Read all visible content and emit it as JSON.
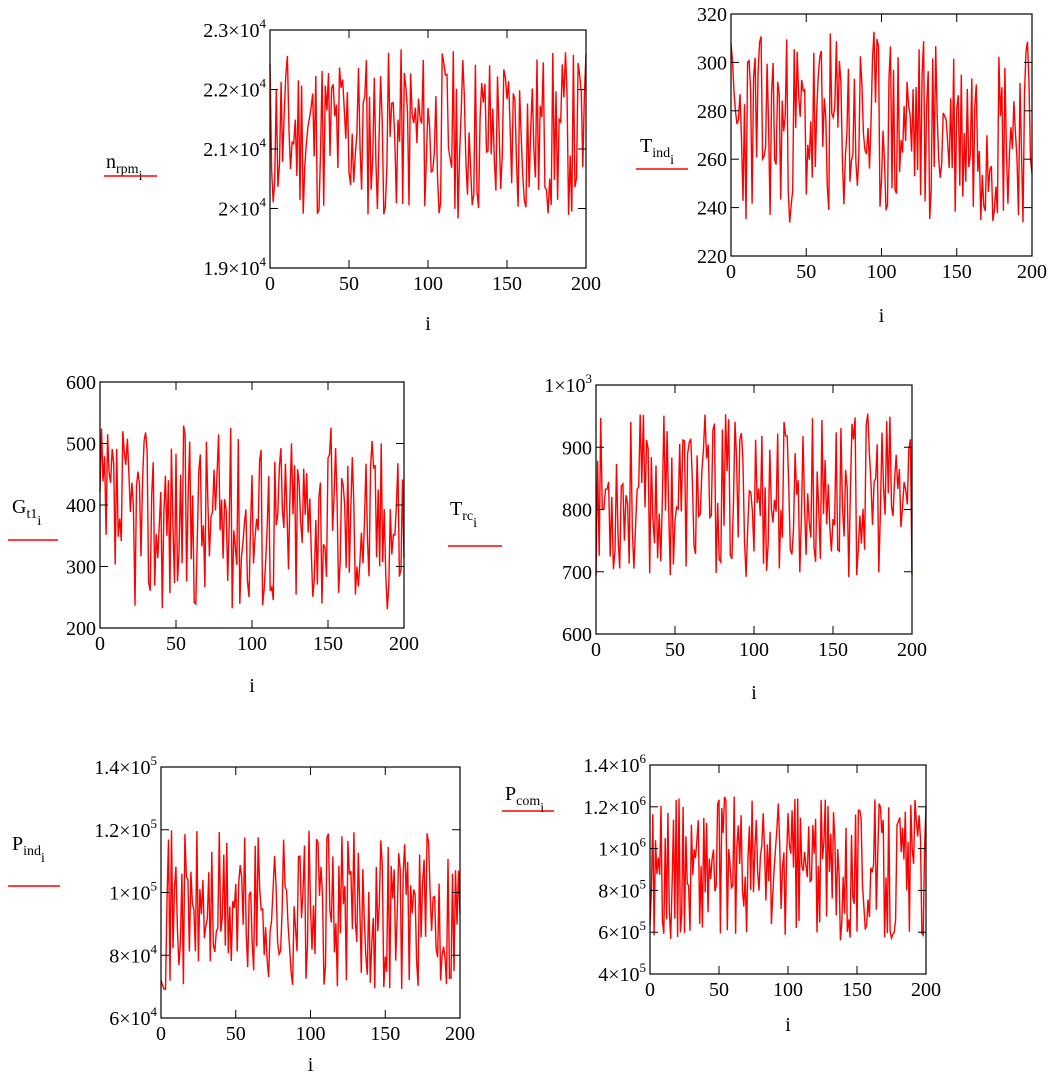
{
  "chart_data": [
    {
      "type": "line",
      "ylabel_main": "n",
      "ylabel_sub": "rpm",
      "ylabel_index": "i",
      "xlabel": "i",
      "color": "#ff0000",
      "xlim": [
        0,
        200
      ],
      "ylim": [
        19000,
        23000
      ],
      "xticks": [
        "0",
        "50",
        "100",
        "150",
        "200"
      ],
      "yticks": [
        {
          "mant": "1.9×10",
          "exp": "4"
        },
        {
          "mant": "2×10",
          "exp": "4"
        },
        {
          "mant": "2.1×10",
          "exp": "4"
        },
        {
          "mant": "2.2×10",
          "exp": "4"
        },
        {
          "mant": "2.3×10",
          "exp": "4"
        }
      ],
      "ytick_values": [
        19000,
        20000,
        21000,
        22000,
        23000
      ],
      "noise": {
        "min": 19800,
        "max": 22700,
        "seed": 11
      }
    },
    {
      "type": "line",
      "ylabel_main": "T",
      "ylabel_sub": "ind",
      "ylabel_index": "i",
      "xlabel": "i",
      "color": "#ff0000",
      "xlim": [
        0,
        200
      ],
      "ylim": [
        220,
        320
      ],
      "xticks": [
        "0",
        "50",
        "100",
        "150",
        "200"
      ],
      "yticks": [
        {
          "mant": "220",
          "exp": ""
        },
        {
          "mant": "240",
          "exp": ""
        },
        {
          "mant": "260",
          "exp": ""
        },
        {
          "mant": "280",
          "exp": ""
        },
        {
          "mant": "300",
          "exp": ""
        },
        {
          "mant": "320",
          "exp": ""
        }
      ],
      "ytick_values": [
        220,
        240,
        260,
        280,
        300,
        320
      ],
      "noise": {
        "min": 233,
        "max": 313,
        "seed": 23
      }
    },
    {
      "type": "line",
      "ylabel_main": "G",
      "ylabel_sub": "t1",
      "ylabel_index": "i",
      "xlabel": "i",
      "color": "#ff0000",
      "xlim": [
        0,
        200
      ],
      "ylim": [
        200,
        600
      ],
      "xticks": [
        "0",
        "50",
        "100",
        "150",
        "200"
      ],
      "yticks": [
        {
          "mant": "200",
          "exp": ""
        },
        {
          "mant": "300",
          "exp": ""
        },
        {
          "mant": "400",
          "exp": ""
        },
        {
          "mant": "500",
          "exp": ""
        },
        {
          "mant": "600",
          "exp": ""
        }
      ],
      "ytick_values": [
        200,
        300,
        400,
        500,
        600
      ],
      "noise": {
        "min": 230,
        "max": 530,
        "seed": 37
      }
    },
    {
      "type": "line",
      "ylabel_main": "T",
      "ylabel_sub": "rc",
      "ylabel_index": "i",
      "xlabel": "i",
      "color": "#ff0000",
      "xlim": [
        0,
        200
      ],
      "ylim": [
        600,
        1000
      ],
      "xticks": [
        "0",
        "50",
        "100",
        "150",
        "200"
      ],
      "yticks": [
        {
          "mant": "600",
          "exp": ""
        },
        {
          "mant": "700",
          "exp": ""
        },
        {
          "mant": "800",
          "exp": ""
        },
        {
          "mant": "900",
          "exp": ""
        },
        {
          "mant": "1×10",
          "exp": "3"
        }
      ],
      "ytick_values": [
        600,
        700,
        800,
        900,
        1000
      ],
      "noise": {
        "min": 690,
        "max": 955,
        "seed": 53
      }
    },
    {
      "type": "line",
      "ylabel_main": "P",
      "ylabel_sub": "ind",
      "ylabel_index": "i",
      "xlabel": "i",
      "color": "#ff0000",
      "xlim": [
        0,
        200
      ],
      "ylim": [
        60000,
        140000
      ],
      "xticks": [
        "0",
        "50",
        "100",
        "150",
        "200"
      ],
      "yticks": [
        {
          "mant": "6×10",
          "exp": "4"
        },
        {
          "mant": "8×10",
          "exp": "4"
        },
        {
          "mant": "1×10",
          "exp": "5"
        },
        {
          "mant": "1.2×10",
          "exp": "5"
        },
        {
          "mant": "1.4×10",
          "exp": "5"
        }
      ],
      "ytick_values": [
        60000,
        80000,
        100000,
        120000,
        140000
      ],
      "noise": {
        "min": 69000,
        "max": 120000,
        "seed": 71
      }
    },
    {
      "type": "line",
      "ylabel_main": "P",
      "ylabel_sub": "com",
      "ylabel_index": "i",
      "xlabel": "i",
      "color": "#ff0000",
      "xlim": [
        0,
        200
      ],
      "ylim": [
        400000,
        1400000
      ],
      "xticks": [
        "0",
        "50",
        "100",
        "150",
        "200"
      ],
      "yticks": [
        {
          "mant": "4×10",
          "exp": "5"
        },
        {
          "mant": "6×10",
          "exp": "5"
        },
        {
          "mant": "8×10",
          "exp": "5"
        },
        {
          "mant": "1×10",
          "exp": "6"
        },
        {
          "mant": "1.2×10",
          "exp": "6"
        },
        {
          "mant": "1.4×10",
          "exp": "6"
        }
      ],
      "ytick_values": [
        400000,
        600000,
        800000,
        1000000,
        1200000,
        1400000
      ],
      "noise": {
        "min": 560000,
        "max": 1250000,
        "seed": 89
      }
    }
  ]
}
